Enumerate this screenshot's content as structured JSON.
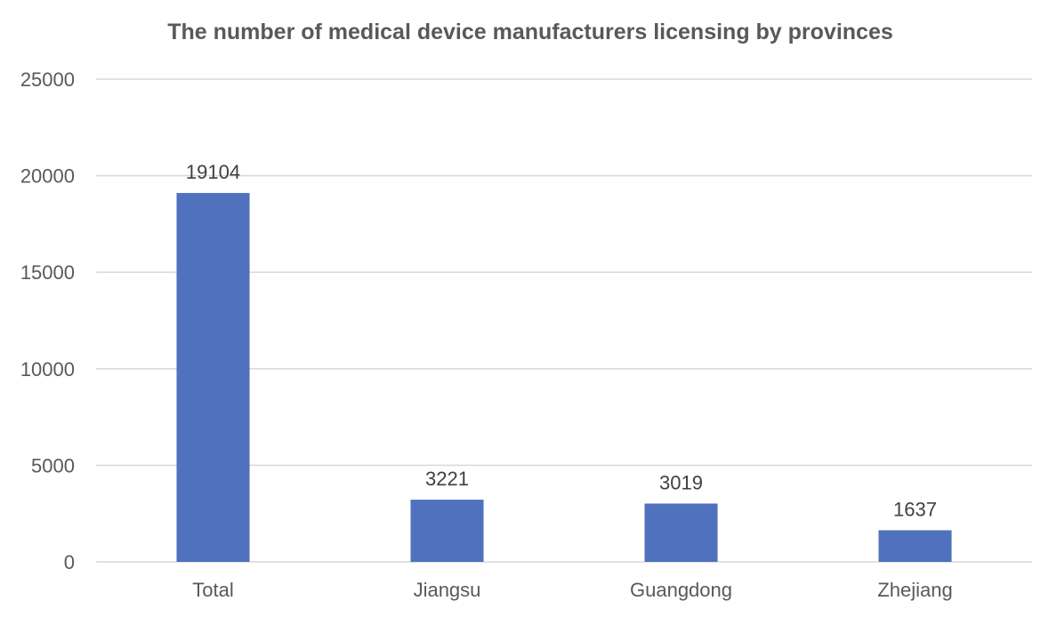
{
  "chart_data": {
    "type": "bar",
    "title": "The number of medical device manufacturers licensing by provinces",
    "xlabel": "",
    "ylabel": "",
    "categories": [
      "Total",
      "Jiangsu",
      "Guangdong",
      "Zhejiang"
    ],
    "values": [
      19104,
      3221,
      3019,
      1637
    ],
    "data_labels": [
      "19104",
      "3221",
      "3019",
      "1637"
    ],
    "ylim": [
      0,
      25000
    ],
    "yticks": [
      0,
      5000,
      10000,
      15000,
      20000,
      25000
    ],
    "ytick_labels": [
      "0",
      "5000",
      "10000",
      "15000",
      "20000",
      "25000"
    ],
    "grid": true,
    "legend": "none",
    "colors": {
      "bar": "#4F71BE",
      "grid": "#D9D9D9",
      "text": "#595959"
    }
  }
}
